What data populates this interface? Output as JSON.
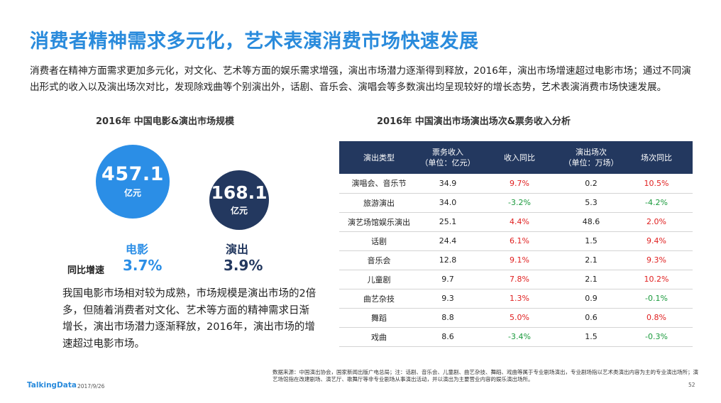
{
  "slide": {
    "title": "消费者精神需求多元化，艺术表演消费市场快速发展",
    "intro": "消费者在精神方面需求更加多元化，对文化、艺术等方面的娱乐需求增强，演出市场潜力逐渐得到释放，2016年，演出市场增速超过电影市场；通过不同演出形式的收入以及演出场次对比，发现除戏曲等个别演出外，话剧、音乐会、演唱会等多数演出均呈现较好的增长态势，艺术表演消费市场快速发展。"
  },
  "left_panel": {
    "heading": "2016年 中国电影&演出市场规模",
    "film": {
      "value": "457.1",
      "unit": "亿元",
      "label": "电影",
      "yoy": "3.7%",
      "color": "#2b8ee6"
    },
    "show": {
      "value": "168.1",
      "unit": "亿元",
      "label": "演出",
      "yoy": "3.9%",
      "color": "#23385f"
    },
    "yoy_label": "同比增速",
    "note": "我国电影市场相对较为成熟，市场规模是演出市场的2倍多，但随着消费者对文化、艺术等方面的精神需求日渐增长，演出市场潜力逐渐释放，2016年，演出市场的增速超过电影市场。"
  },
  "right_panel": {
    "heading": "2016年 中国演出市场演出场次&票务收入分析",
    "columns": [
      "演出类型",
      "票务收入\n（单位：亿元）",
      "收入同比",
      "演出场次\n（单位：万场）",
      "场次同比"
    ],
    "rows": [
      [
        "演唱会、音乐节",
        "34.9",
        "9.7%",
        "0.2",
        "10.5%"
      ],
      [
        "旅游演出",
        "34.0",
        "-3.2%",
        "5.3",
        "-4.2%"
      ],
      [
        "演艺场馆娱乐演出",
        "25.1",
        "4.4%",
        "48.6",
        "2.0%"
      ],
      [
        "话剧",
        "24.4",
        "6.1%",
        "1.5",
        "9.4%"
      ],
      [
        "音乐会",
        "12.8",
        "9.1%",
        "2.1",
        "9.3%"
      ],
      [
        "儿童剧",
        "9.7",
        "7.8%",
        "2.1",
        "10.2%"
      ],
      [
        "曲艺杂技",
        "9.3",
        "1.3%",
        "0.9",
        "-0.1%"
      ],
      [
        "舞蹈",
        "8.8",
        "5.0%",
        "0.6",
        "0.8%"
      ],
      [
        "戏曲",
        "8.6",
        "-3.4%",
        "1.5",
        "-0.3%"
      ]
    ]
  },
  "footer": {
    "source": "数据来源：中国演出协会，国家新闻出版广电总局；注：话剧、音乐会、儿童剧、曲艺杂技、舞蹈、戏曲等属于专业剧场演出，专业剧场指以艺术类演出内容为主的专业演出场所；演艺场馆指在改建剧场、演艺厅、歌舞厅等非专业剧场从事演出活动，并以演出为主要营业内容的娱乐演出场所。",
    "brand": "TalkingData",
    "date": "2017/9/26",
    "page": "52"
  },
  "colors": {
    "title": "#2a8bdc",
    "header_bg": "#23385f",
    "positive": "#e02020",
    "negative": "#1a9a3c"
  }
}
